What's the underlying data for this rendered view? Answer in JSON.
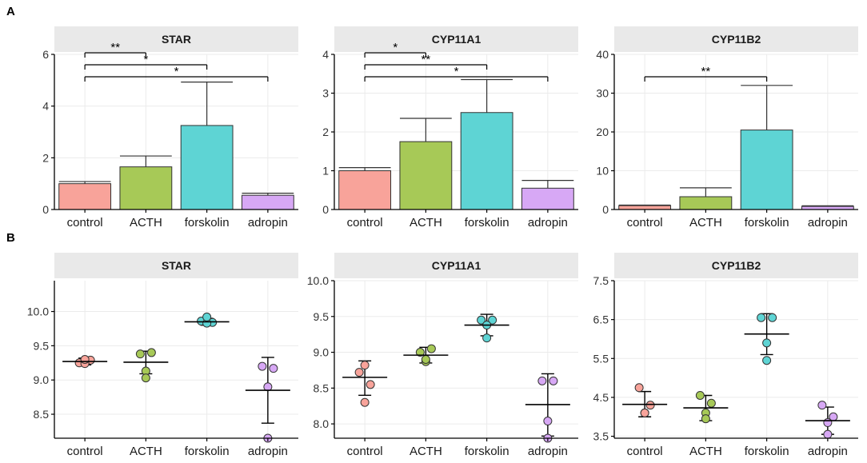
{
  "panels": [
    {
      "letter": "A",
      "label": "panel-a"
    },
    {
      "letter": "B",
      "label": "panel-b"
    }
  ],
  "categories": [
    "control",
    "ACTH",
    "forskolin",
    "adropin"
  ],
  "colors": {
    "control": "#f8a39a",
    "ACTH": "#a7c957",
    "forskolin": "#5ed4d4",
    "adropin": "#d7a8f5",
    "strip": "#e9e9e9",
    "grid": "#ebebeb",
    "axis": "#000000"
  },
  "chart_data": [
    {
      "type": "bar",
      "title": "STAR",
      "categories": [
        "control",
        "ACTH",
        "forskolin",
        "adropin"
      ],
      "values": [
        1.0,
        1.65,
        3.25,
        0.55
      ],
      "error_upper": [
        1.08,
        2.07,
        4.93,
        0.63
      ],
      "ylim": [
        0,
        6
      ],
      "yticks": [
        "0",
        "2",
        "4",
        "6"
      ],
      "ytick_values": [
        0,
        2,
        4,
        6
      ],
      "significance": [
        {
          "from": 0,
          "to": 1,
          "label": "**"
        },
        {
          "from": 0,
          "to": 2,
          "label": "*"
        },
        {
          "from": 0,
          "to": 3,
          "label": "*"
        }
      ]
    },
    {
      "type": "bar",
      "title": "CYP11A1",
      "categories": [
        "control",
        "ACTH",
        "forskolin",
        "adropin"
      ],
      "values": [
        1.0,
        1.75,
        2.5,
        0.55
      ],
      "error_upper": [
        1.08,
        2.35,
        3.35,
        0.75
      ],
      "ylim": [
        0,
        4
      ],
      "yticks": [
        "0",
        "1",
        "2",
        "3",
        "4"
      ],
      "ytick_values": [
        0,
        1,
        2,
        3,
        4
      ],
      "significance": [
        {
          "from": 0,
          "to": 1,
          "label": "*"
        },
        {
          "from": 0,
          "to": 2,
          "label": "**"
        },
        {
          "from": 0,
          "to": 3,
          "label": "*"
        }
      ]
    },
    {
      "type": "bar",
      "title": "CYP11B2",
      "categories": [
        "control",
        "ACTH",
        "forskolin",
        "adropin"
      ],
      "values": [
        1.0,
        3.3,
        20.5,
        0.8
      ],
      "error_upper": [
        1.15,
        5.6,
        32.0,
        0.95
      ],
      "ylim": [
        0,
        40
      ],
      "yticks": [
        "0",
        "10",
        "20",
        "30",
        "40"
      ],
      "ytick_values": [
        0,
        10,
        20,
        30,
        40
      ],
      "significance": [
        {
          "from": 0,
          "to": 2,
          "label": "**"
        }
      ]
    },
    {
      "type": "scatter",
      "title": "STAR",
      "categories": [
        "control",
        "ACTH",
        "forskolin",
        "adropin"
      ],
      "points": [
        [
          9.25,
          9.29,
          9.24,
          9.3
        ],
        [
          9.38,
          9.4,
          9.13,
          9.03
        ],
        [
          9.86,
          9.84,
          9.83,
          9.92
        ],
        [
          9.2,
          9.17,
          8.9,
          8.15
        ]
      ],
      "mean": [
        9.27,
        9.26,
        9.85,
        8.85
      ],
      "sd_low": [
        9.22,
        9.09,
        9.8,
        8.37
      ],
      "sd_high": [
        9.32,
        9.42,
        9.9,
        9.33
      ],
      "ylim": [
        8.15,
        10.45
      ],
      "yticks": [
        "8.5",
        "9.0",
        "9.5",
        "10.0"
      ],
      "ytick_values": [
        8.5,
        9.0,
        9.5,
        10.0
      ]
    },
    {
      "type": "scatter",
      "title": "CYP11A1",
      "categories": [
        "control",
        "ACTH",
        "forskolin",
        "adropin"
      ],
      "points": [
        [
          8.72,
          8.55,
          8.3,
          8.82
        ],
        [
          9.0,
          9.05,
          8.87,
          8.9
        ],
        [
          9.45,
          9.45,
          9.38,
          9.2
        ],
        [
          8.6,
          8.6,
          8.04,
          7.8
        ]
      ],
      "mean": [
        8.65,
        8.96,
        9.38,
        8.27
      ],
      "sd_low": [
        8.4,
        8.85,
        9.23,
        7.83
      ],
      "sd_high": [
        8.88,
        9.07,
        9.53,
        8.7
      ],
      "ylim": [
        7.8,
        10.0
      ],
      "yticks": [
        "8.0",
        "8.5",
        "9.0",
        "9.5",
        "10.0"
      ],
      "ytick_values": [
        8.0,
        8.5,
        9.0,
        9.5,
        10.0
      ]
    },
    {
      "type": "scatter",
      "title": "CYP11B2",
      "categories": [
        "control",
        "ACTH",
        "forskolin",
        "adropin"
      ],
      "points": [
        [
          4.75,
          4.3,
          4.1,
          4.1
        ],
        [
          4.55,
          4.35,
          4.1,
          3.95
        ],
        [
          6.55,
          6.55,
          5.9,
          5.45
        ],
        [
          4.3,
          4.0,
          3.85,
          3.55
        ]
      ],
      "mean": [
        4.32,
        4.23,
        6.13,
        3.9
      ],
      "sd_low": [
        4.0,
        3.9,
        5.6,
        3.55
      ],
      "sd_high": [
        4.65,
        4.55,
        6.65,
        4.25
      ],
      "ylim": [
        3.45,
        7.5
      ],
      "yticks": [
        "3.5",
        "4.5",
        "5.5",
        "6.5",
        "7.5"
      ],
      "ytick_values": [
        3.5,
        4.5,
        5.5,
        6.5,
        7.5
      ]
    }
  ]
}
